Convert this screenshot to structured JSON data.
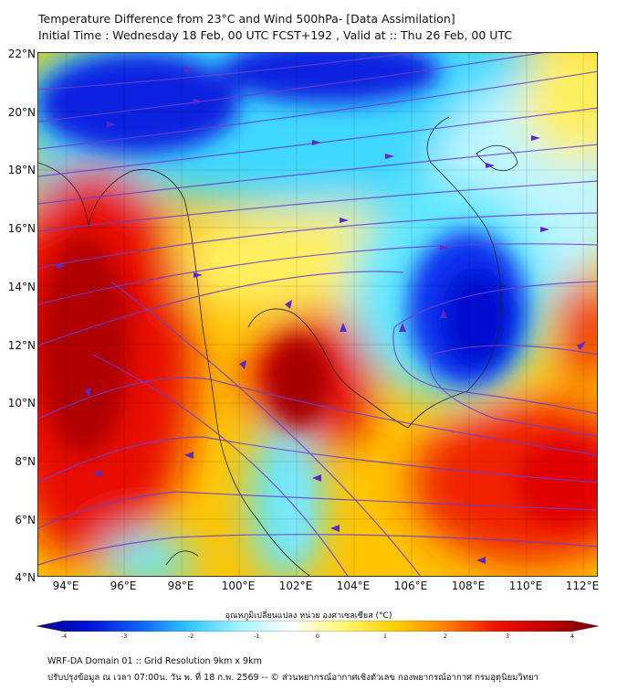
{
  "title": {
    "line1": "Temperature Difference from 23°C and Wind 500hPa- [Data Assimilation]",
    "line2": "Initial Time : Wednesday 18 Feb, 00 UTC FCST+192 , Valid at ::  Thu 26 Feb, 00 UTC"
  },
  "map": {
    "lat_labels": [
      "22°N",
      "20°N",
      "18°N",
      "16°N",
      "14°N",
      "12°N",
      "10°N",
      "8°N",
      "6°N",
      "4°N"
    ],
    "lon_labels": [
      "94°E",
      "96°E",
      "98°E",
      "100°E",
      "102°E",
      "104°E",
      "106°E",
      "108°E",
      "110°E",
      "112°E"
    ],
    "streamline_color": "#6a3fd0"
  },
  "colorbar": {
    "title": "อุณหภูมิเปลี่ยนแปลง หน่วย องศาเซลเซียส (°C)",
    "ticks": [
      "-4",
      "-3",
      "-2",
      "-1",
      "0",
      "1",
      "2",
      "3",
      "4"
    ],
    "range": [
      -4,
      4
    ],
    "colors": [
      "#00008a",
      "#0010d8",
      "#1060f8",
      "#30c8ff",
      "#a8f4ff",
      "#ffffff",
      "#fff870",
      "#ffd000",
      "#ff8000",
      "#f01000",
      "#c00000",
      "#700000"
    ]
  },
  "footer": {
    "line1": "WRF-DA Domain 01 :: Grid Resolution 9km x 9km",
    "line2": "ปรับปรุงข้อมูล ณ เวลา 07:00น. วัน พ. ที่ 18 ก.พ. 2569 -- © ส่วนพยากรณ์อากาศเชิงตัวเลข กองพยากรณ์อากาศ กรมอุตุนิยมวิทยา"
  }
}
